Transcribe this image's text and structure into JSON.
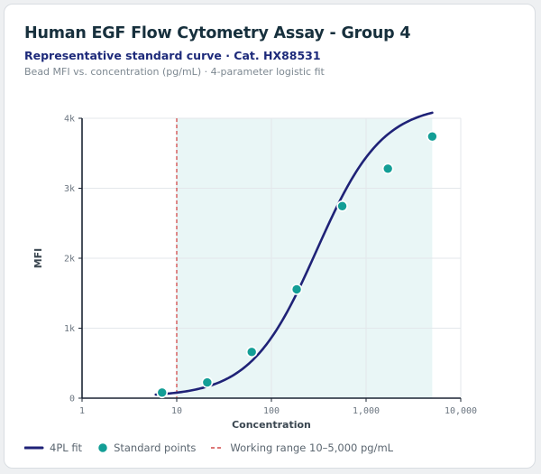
{
  "header": {
    "title": "Human EGF Flow Cytometry Assay - Group 4",
    "subtitle": "Representative standard curve · Cat. HX88531",
    "note": "Bead MFI vs. concentration (pg/mL) · 4-parameter logistic fit"
  },
  "legend": {
    "fit": "4PL fit",
    "points": "Standard points",
    "range": "Working range 10–5,000 pg/mL"
  },
  "colors": {
    "fit": "#1f2277",
    "points": "#139e96",
    "range_line": "#d24a4a",
    "range_fill": "#e9f6f6"
  },
  "chart_data": {
    "type": "scatter",
    "xscale": "log",
    "xlabel": "Concentration",
    "ylabel": "MFI",
    "xlim": [
      1,
      10000
    ],
    "ylim": [
      0,
      4000
    ],
    "x_ticks": [
      {
        "value": 1,
        "label": "1"
      },
      {
        "value": 10,
        "label": "10"
      },
      {
        "value": 100,
        "label": "100"
      },
      {
        "value": 1000,
        "label": "1,000"
      },
      {
        "value": 10000,
        "label": "10,000"
      }
    ],
    "y_ticks": [
      {
        "value": 0,
        "label": "0"
      },
      {
        "value": 1000,
        "label": "1k"
      },
      {
        "value": 2000,
        "label": "2k"
      },
      {
        "value": 3000,
        "label": "3k"
      },
      {
        "value": 4000,
        "label": "4k"
      }
    ],
    "grid": true,
    "legend_position": "bottom",
    "working_range": [
      10,
      5000
    ],
    "standard_points": [
      {
        "x": 7,
        "y": 80
      },
      {
        "x": 21,
        "y": 225
      },
      {
        "x": 62,
        "y": 660
      },
      {
        "x": 185,
        "y": 1555
      },
      {
        "x": 560,
        "y": 2745
      },
      {
        "x": 1700,
        "y": 3280
      },
      {
        "x": 5000,
        "y": 3740
      }
    ],
    "fit_4pl": {
      "a": 20,
      "d": 4200,
      "c": 300,
      "b": 1.25,
      "x_range": [
        6,
        5000
      ]
    }
  }
}
